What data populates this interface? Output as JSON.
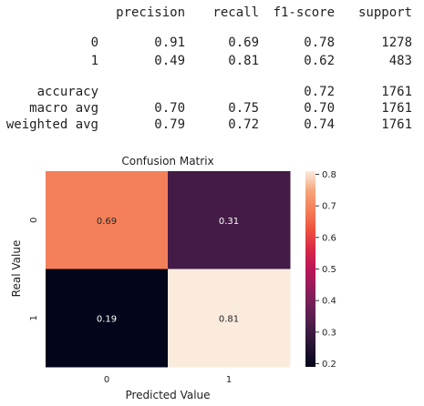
{
  "report": {
    "columns": [
      "precision",
      "recall",
      "f1-score",
      "support"
    ],
    "rows": [
      {
        "label": "0",
        "precision": "0.91",
        "recall": "0.69",
        "f1-score": "0.78",
        "support": "1278"
      },
      {
        "label": "1",
        "precision": "0.49",
        "recall": "0.81",
        "f1-score": "0.62",
        "support": "483"
      },
      {
        "label": "accuracy",
        "f1-score": "0.72",
        "support": "1761"
      },
      {
        "label": "macro avg",
        "precision": "0.70",
        "recall": "0.75",
        "f1-score": "0.70",
        "support": "1761"
      },
      {
        "label": "weighted avg",
        "precision": "0.79",
        "recall": "0.72",
        "f1-score": "0.74",
        "support": "1761"
      }
    ]
  },
  "chart_data": {
    "type": "heatmap",
    "title": "Confusion Matrix",
    "x_label": "Predicted Value",
    "y_label": "Real Value",
    "x_categories": [
      "0",
      "1"
    ],
    "y_categories": [
      "0",
      "1"
    ],
    "values": [
      [
        0.69,
        0.31
      ],
      [
        0.19,
        0.81
      ]
    ],
    "colormap": "rocket",
    "clim": [
      0.19,
      0.81
    ],
    "cticks": [
      0.2,
      0.3,
      0.4,
      0.5,
      0.6,
      0.7,
      0.8
    ]
  }
}
